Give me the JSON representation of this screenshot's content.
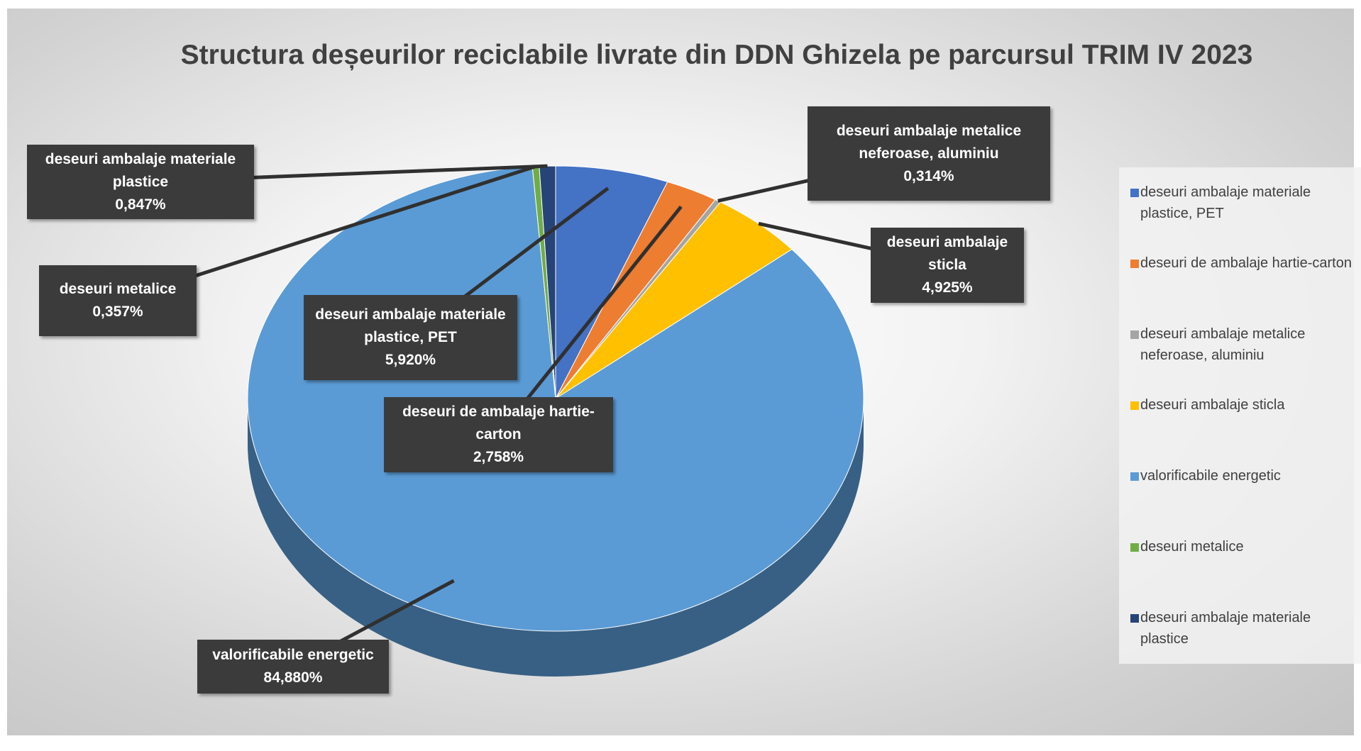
{
  "chart_data": {
    "type": "pie",
    "title": "Structura deșeurilor reciclabile livrate din DDN Ghizela pe parcursul TRIM IV 2023",
    "categories": [
      "deseuri ambalaje materiale plastice, PET",
      "deseuri de ambalaje hartie-carton",
      "deseuri ambalaje metalice neferoase, aluminiu",
      "deseuri ambalaje sticla",
      "valorificabile energetic",
      "deseuri metalice",
      "deseuri ambalaje materiale plastice"
    ],
    "values": [
      5.92,
      2.758,
      0.314,
      4.925,
      84.88,
      0.357,
      0.847
    ],
    "value_labels": [
      "5,920%",
      "2,758%",
      "0,314%",
      "4,925%",
      "84,880%",
      "0,357%",
      "0,847%"
    ],
    "colors": [
      "#4472c4",
      "#ed7d31",
      "#a5a5a5",
      "#ffc000",
      "#5b9bd5",
      "#70ad47",
      "#264478"
    ],
    "legend": "right"
  }
}
